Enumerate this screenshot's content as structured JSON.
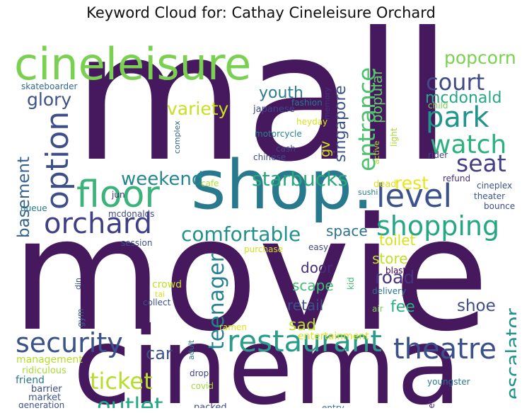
{
  "title": "Keyword Cloud for: Cathay Cineleisure Orchard",
  "words": [
    {
      "text": "mall",
      "color": "#46185e"
    },
    {
      "text": "movie",
      "color": "#46185e"
    },
    {
      "text": "cinema",
      "color": "#46185e"
    },
    {
      "text": "shop.",
      "color": "#28788e"
    },
    {
      "text": "cineleisure",
      "color": "#7ad151"
    },
    {
      "text": "restaurant",
      "color": "#2a9d8a"
    },
    {
      "text": "floor",
      "color": "#3bb37a"
    },
    {
      "text": "level",
      "color": "#3b528b"
    },
    {
      "text": "option",
      "color": "#3d4e8a"
    },
    {
      "text": "theatre",
      "color": "#3b4f8c"
    },
    {
      "text": "orchard",
      "color": "#3f3f86"
    },
    {
      "text": "security",
      "color": "#3a528b"
    },
    {
      "text": "shopping",
      "color": "#24a884"
    },
    {
      "text": "park",
      "color": "#1f958b"
    },
    {
      "text": "watch",
      "color": "#2cb17e"
    },
    {
      "text": "comfortable",
      "color": "#21918c"
    },
    {
      "text": "court",
      "color": "#3e4a89"
    },
    {
      "text": "popcorn",
      "color": "#7ad151"
    },
    {
      "text": "seat",
      "color": "#433e85"
    },
    {
      "text": "entrance",
      "color": "#4cc26c"
    },
    {
      "text": "starbucks",
      "color": "#2ca67c"
    },
    {
      "text": "weekend",
      "color": "#24868e"
    },
    {
      "text": "ticket",
      "color": "#b5de2b"
    },
    {
      "text": "outlet",
      "color": "#22a884"
    },
    {
      "text": "teenager",
      "color": "#26828e"
    },
    {
      "text": "escalator",
      "color": "#21918c"
    },
    {
      "text": "basement",
      "color": "#34618d"
    },
    {
      "text": "glory",
      "color": "#3b528b"
    },
    {
      "text": "variety",
      "color": "#c8e020"
    },
    {
      "text": "mcdonald",
      "color": "#22a884"
    },
    {
      "text": "singapore",
      "color": "#3b528b"
    },
    {
      "text": "rest",
      "color": "#eae51a"
    },
    {
      "text": "youth",
      "color": "#287c8e"
    },
    {
      "text": "popular",
      "color": "#5ec962"
    },
    {
      "text": "toilet",
      "color": "#d8e219"
    },
    {
      "text": "store",
      "color": "#c0df25"
    },
    {
      "text": "road",
      "color": "#46327e"
    },
    {
      "text": "space",
      "color": "#2c718e"
    },
    {
      "text": "door",
      "color": "#472d7b"
    },
    {
      "text": "scape",
      "color": "#3fbc73"
    },
    {
      "text": "retail",
      "color": "#3b528b"
    },
    {
      "text": "sad",
      "color": "#b8de29"
    },
    {
      "text": "fee",
      "color": "#2ab07f"
    },
    {
      "text": "shoe",
      "color": "#3e4c8a"
    },
    {
      "text": "car",
      "color": "#3d4d8a"
    },
    {
      "text": "cathay",
      "color": "#8fd744"
    },
    {
      "text": "gv",
      "color": "#d2e21b"
    },
    {
      "text": "entertainment",
      "color": "#dde318"
    },
    {
      "text": "crowd",
      "color": "#c2df23"
    },
    {
      "text": "japanese",
      "color": "#3e4989"
    },
    {
      "text": "fashion",
      "color": "#2a788e"
    },
    {
      "text": "heyday",
      "color": "#d8e219"
    },
    {
      "text": "memory",
      "color": "#46337e"
    },
    {
      "text": "child",
      "color": "#7ad151"
    },
    {
      "text": "motorcycle",
      "color": "#26828e"
    },
    {
      "text": "cash",
      "color": "#414487"
    },
    {
      "text": "chinese",
      "color": "#3e4a89"
    },
    {
      "text": "active",
      "color": "#b5de2b"
    },
    {
      "text": "light",
      "color": "#a2da37"
    },
    {
      "text": "rider",
      "color": "#414487"
    },
    {
      "text": "complex",
      "color": "#34618d"
    },
    {
      "text": "skateboarder",
      "color": "#31688e"
    },
    {
      "text": "cafe",
      "color": "#b5de2b"
    },
    {
      "text": "dead",
      "color": "#dde318"
    },
    {
      "text": "refund",
      "color": "#472f7d"
    },
    {
      "text": "cineplex",
      "color": "#3b528b"
    },
    {
      "text": "sushi",
      "color": "#287c8e"
    },
    {
      "text": "jun",
      "color": "#472d7b"
    },
    {
      "text": "theater",
      "color": "#3b528b"
    },
    {
      "text": "bounce",
      "color": "#3e4a89"
    },
    {
      "text": "queue",
      "color": "#2a788e"
    },
    {
      "text": "mcdonalds",
      "color": "#3e4989"
    },
    {
      "text": "session",
      "color": "#3b528b"
    },
    {
      "text": "purchase",
      "color": "#d0e11c"
    },
    {
      "text": "easy",
      "color": "#3e4a89"
    },
    {
      "text": "blast",
      "color": "#440154"
    },
    {
      "text": "kid",
      "color": "#3fbc73"
    },
    {
      "text": "delivery",
      "color": "#2c728e"
    },
    {
      "text": "tai",
      "color": "#dde318"
    },
    {
      "text": "collect",
      "color": "#3b528b"
    },
    {
      "text": "din",
      "color": "#3b528b"
    },
    {
      "text": "air",
      "color": "#7ad151"
    },
    {
      "text": "gym",
      "color": "#31688e"
    },
    {
      "text": "ramen",
      "color": "#dde318"
    },
    {
      "text": "adult",
      "color": "#2a788e"
    },
    {
      "text": "management",
      "color": "#b5de2b"
    },
    {
      "text": "ridiculous",
      "color": "#a8db34"
    },
    {
      "text": "friend",
      "color": "#2a788e"
    },
    {
      "text": "barrier",
      "color": "#3e4989"
    },
    {
      "text": "market",
      "color": "#3b528b"
    },
    {
      "text": "generation",
      "color": "#3b528b"
    },
    {
      "text": "drop",
      "color": "#404688"
    },
    {
      "text": "covid",
      "color": "#a2da37"
    },
    {
      "text": "packed",
      "color": "#3e4a89"
    },
    {
      "text": "catch",
      "color": "#d8e219"
    },
    {
      "text": "heart",
      "color": "#472d7b"
    },
    {
      "text": "entry",
      "color": "#2c718e"
    },
    {
      "text": "youngster",
      "color": "#2a788e"
    },
    {
      "text": "buffet",
      "color": "#472d7b"
    },
    {
      "text": "guard",
      "color": "#2ab07f"
    }
  ]
}
